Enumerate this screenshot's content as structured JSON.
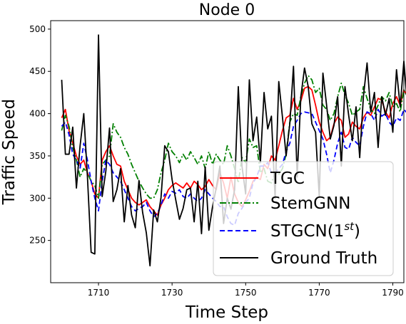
{
  "chart_data": {
    "type": "line",
    "title": "Node 0",
    "xlabel": "Time Step",
    "ylabel": "Traffic Speed",
    "xlim": [
      1697,
      1793
    ],
    "ylim": [
      200,
      510
    ],
    "xticks": [
      1710,
      1730,
      1750,
      1770,
      1790
    ],
    "yticks": [
      250,
      300,
      350,
      400,
      450,
      500
    ],
    "grid": false,
    "legend_position": "bottom-right",
    "x_start": 1700,
    "series": [
      {
        "name": "TGC",
        "color": "#ff0000",
        "dash": "solid",
        "values": [
          395,
          405,
          380,
          365,
          350,
          340,
          345,
          330,
          320,
          305,
          300,
          345,
          355,
          362,
          350,
          340,
          338,
          320,
          310,
          300,
          295,
          292,
          295,
          298,
          290,
          285,
          280,
          292,
          300,
          310,
          315,
          318,
          315,
          312,
          318,
          312,
          320,
          316,
          310,
          314,
          322,
          315,
          310,
          330,
          318,
          300,
          325,
          305,
          295,
          290,
          298,
          308,
          320,
          325,
          322,
          340,
          335,
          350,
          345,
          362,
          380,
          395,
          398,
          418,
          405,
          415,
          430,
          432,
          428,
          410,
          390,
          378,
          368,
          372,
          388,
          396,
          392,
          372,
          376,
          390,
          385,
          382,
          395,
          402,
          398,
          408,
          418,
          416,
          402,
          395,
          412,
          420,
          410,
          428,
          420,
          392,
          415
        ]
      },
      {
        "name": "StemGNN",
        "color": "#008000",
        "dash": "dashdot",
        "values": [
          380,
          398,
          385,
          360,
          345,
          325,
          335,
          330,
          320,
          315,
          300,
          340,
          345,
          350,
          388,
          378,
          372,
          360,
          352,
          340,
          330,
          320,
          312,
          305,
          300,
          300,
          310,
          330,
          345,
          365,
          355,
          350,
          342,
          352,
          345,
          355,
          348,
          340,
          350,
          335,
          355,
          340,
          352,
          345,
          340,
          362,
          350,
          335,
          318,
          348,
          342,
          370,
          360,
          362,
          330,
          335,
          320,
          318,
          330,
          328,
          335,
          352,
          390,
          400,
          398,
          420,
          436,
          445,
          440,
          425,
          430,
          410,
          405,
          392,
          400,
          420,
          436,
          422,
          412,
          398,
          402,
          405,
          432,
          418,
          405,
          400,
          410,
          420,
          415,
          425,
          408,
          412,
          402,
          428,
          420,
          415,
          430
        ]
      },
      {
        "name": "STGCN(1^{st})",
        "color": "#0000ff",
        "dash": "dashed",
        "values": [
          385,
          390,
          375,
          352,
          345,
          335,
          365,
          345,
          320,
          300,
          285,
          320,
          345,
          340,
          330,
          325,
          320,
          310,
          300,
          290,
          285,
          288,
          290,
          295,
          285,
          278,
          282,
          292,
          305,
          300,
          308,
          306,
          310,
          302,
          300,
          305,
          300,
          296,
          300,
          310,
          305,
          300,
          296,
          290,
          290,
          278,
          270,
          268,
          282,
          288,
          295,
          300,
          318,
          325,
          338,
          338,
          342,
          330,
          330,
          335,
          340,
          355,
          365,
          385,
          392,
          400,
          402,
          401,
          400,
          390,
          380,
          370,
          352,
          330,
          345,
          365,
          378,
          360,
          358,
          372,
          366,
          362,
          385,
          402,
          400,
          392,
          405,
          397,
          400,
          390,
          385,
          395,
          392,
          405,
          400,
          390,
          405
        ]
      },
      {
        "name": "Ground Truth",
        "color": "#000000",
        "dash": "solid",
        "values": [
          440,
          352,
          352,
          384,
          312,
          362,
          400,
          325,
          236,
          234,
          493,
          302,
          332,
          383,
          296,
          310,
          335,
          272,
          315,
          280,
          265,
          321,
          283,
          259,
          220,
          286,
          272,
          301,
          362,
          355,
          322,
          298,
          275,
          288,
          310,
          312,
          272,
          320,
          258,
          337,
          262,
          290,
          312,
          338,
          270,
          300,
          287,
          310,
          432,
          338,
          305,
          440,
          368,
          396,
          342,
          425,
          382,
          397,
          300,
          438,
          396,
          350,
          388,
          456,
          325,
          420,
          454,
          432,
          388,
          378,
          302,
          448,
          410,
          370,
          386,
          420,
          338,
          432,
          398,
          368,
          408,
          348,
          420,
          460,
          402,
          425,
          360,
          420,
          398,
          418,
          378,
          452,
          408,
          462,
          408,
          363,
          428
        ]
      }
    ]
  }
}
